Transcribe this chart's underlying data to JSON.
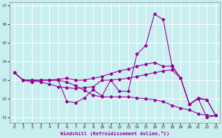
{
  "xlabel": "Windchill (Refroidissement éolien,°C)",
  "background_color": "#c8eef0",
  "line_color": "#990099",
  "grid_color": "#aadddd",
  "xlim": [
    -0.5,
    23.5
  ],
  "ylim": [
    10.7,
    17.2
  ],
  "yticks": [
    11,
    12,
    13,
    14,
    15,
    16,
    17
  ],
  "xticks": [
    0,
    1,
    2,
    3,
    4,
    5,
    6,
    7,
    8,
    9,
    10,
    11,
    12,
    13,
    14,
    15,
    16,
    17,
    18,
    19,
    20,
    21,
    22,
    23
  ],
  "series": [
    [
      13.4,
      13.0,
      13.0,
      13.0,
      13.0,
      13.0,
      11.85,
      11.8,
      12.05,
      12.5,
      12.15,
      13.0,
      12.4,
      12.4,
      14.4,
      14.85,
      16.55,
      16.25,
      13.8,
      13.1,
      11.7,
      12.05,
      11.95,
      11.1
    ],
    [
      13.4,
      13.0,
      13.0,
      12.9,
      12.8,
      12.65,
      12.6,
      12.55,
      12.6,
      12.65,
      13.0,
      13.0,
      13.05,
      13.1,
      13.2,
      13.3,
      13.4,
      13.5,
      13.55,
      13.1,
      11.7,
      12.0,
      11.0,
      11.1
    ],
    [
      13.4,
      13.0,
      13.0,
      13.0,
      13.0,
      13.0,
      12.9,
      12.7,
      12.45,
      12.2,
      12.1,
      12.1,
      12.1,
      12.1,
      12.05,
      12.0,
      11.95,
      11.85,
      11.65,
      11.5,
      11.4,
      11.2,
      11.1,
      11.1
    ],
    [
      13.4,
      13.0,
      12.9,
      13.0,
      13.0,
      13.05,
      13.1,
      13.0,
      13.0,
      13.1,
      13.2,
      13.35,
      13.5,
      13.6,
      13.75,
      13.85,
      13.95,
      13.75,
      13.75,
      13.1,
      11.7,
      12.0,
      11.95,
      11.1
    ]
  ]
}
